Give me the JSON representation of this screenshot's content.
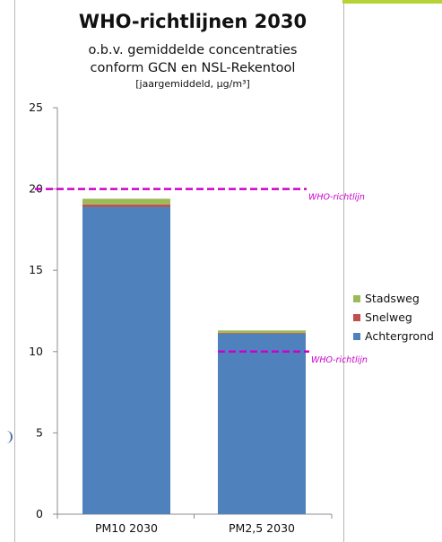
{
  "chart_data": {
    "type": "bar",
    "stacked": true,
    "title": "WHO-richtlijnen 2030",
    "subtitle_lines": [
      "o.b.v. gemiddelde concentraties",
      "conform GCN en NSL-Rekentool"
    ],
    "unit_label": "[jaargemiddeld, µg/m³]",
    "categories": [
      "PM10 2030",
      "PM2,5 2030"
    ],
    "series": [
      {
        "name": "Achtergrond",
        "color": "#4f81bd",
        "values": [
          18.9,
          11.1
        ]
      },
      {
        "name": "Snelweg",
        "color": "#c0504d",
        "values": [
          0.15,
          0.05
        ]
      },
      {
        "name": "Stadsweg",
        "color": "#9bbb59",
        "values": [
          0.35,
          0.15
        ]
      }
    ],
    "legend_order": [
      "Stadsweg",
      "Snelweg",
      "Achtergrond"
    ],
    "reference_lines": [
      {
        "label": "WHO-richtlijn",
        "value": 20,
        "category_index": 0,
        "color": "#cc00cc"
      },
      {
        "label": "WHO-richtlijn",
        "value": 10,
        "category_index": 1,
        "color": "#cc00cc"
      }
    ],
    "ylim": [
      0,
      25
    ],
    "yticks": [
      0,
      5,
      10,
      15,
      20,
      25
    ],
    "grid": false,
    "legend_position": "right"
  }
}
